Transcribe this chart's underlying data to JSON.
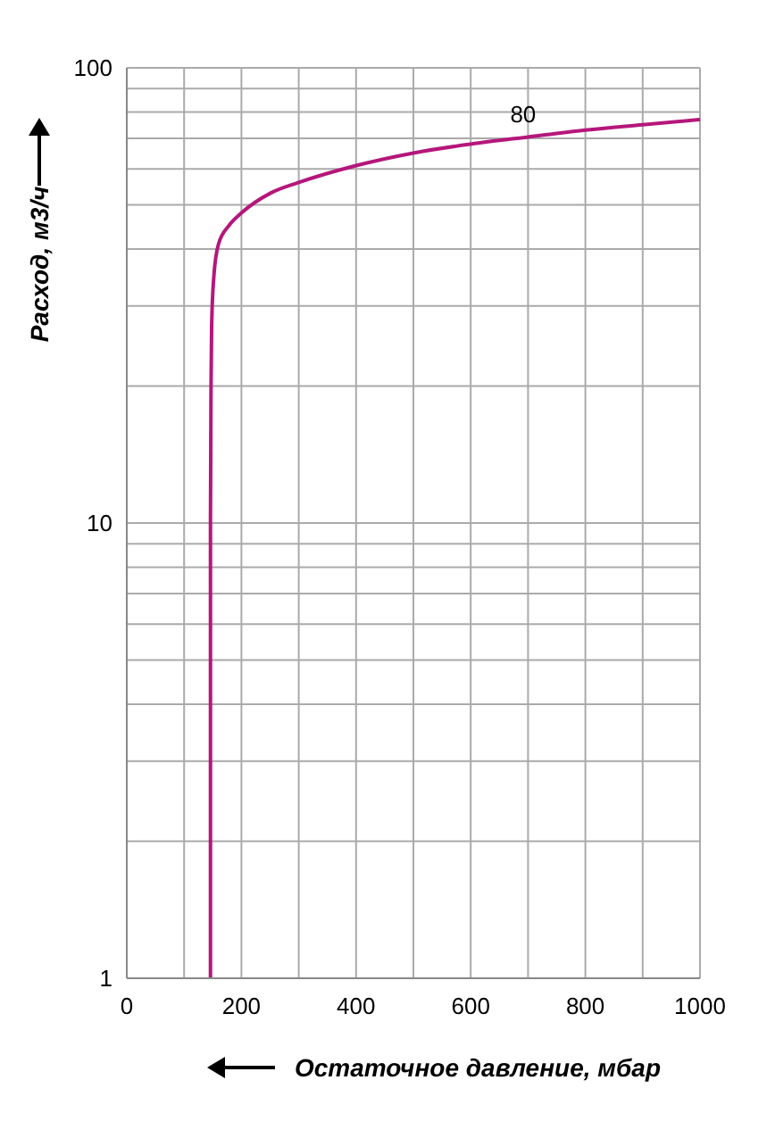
{
  "chart_data": {
    "type": "line",
    "xlabel": "Остаточное давление, мбар",
    "ylabel": "Расход, м3/ч",
    "x": [
      146,
      146,
      147,
      148,
      152,
      160,
      178,
      200,
      250,
      300,
      400,
      500,
      600,
      700,
      800,
      900,
      1000
    ],
    "series": [
      {
        "name": "80",
        "color": "#b5177b",
        "values": [
          1,
          10,
          20,
          27,
          35,
          41,
          45,
          48,
          53,
          56,
          61,
          65,
          68,
          70.5,
          73,
          75,
          77
        ]
      }
    ],
    "xlim": [
      0,
      1000
    ],
    "ylim": [
      1,
      100
    ],
    "log": "y",
    "xticks": [
      0,
      {
        "value": 100,
        "label": null
      },
      200,
      {
        "value": 300,
        "label": null
      },
      400,
      {
        "value": 500,
        "label": null
      },
      600,
      {
        "value": 700,
        "label": null
      },
      800,
      {
        "value": 900,
        "label": null
      },
      1000
    ],
    "yticks": [
      1,
      {
        "value": 2,
        "label": null
      },
      {
        "value": 3,
        "label": null
      },
      {
        "value": 4,
        "label": null
      },
      {
        "value": 5,
        "label": null
      },
      {
        "value": 6,
        "label": null
      },
      {
        "value": 7,
        "label": null
      },
      {
        "value": 8,
        "label": null
      },
      {
        "value": 9,
        "label": null
      },
      10,
      {
        "value": 20,
        "label": null
      },
      {
        "value": 30,
        "label": null
      },
      {
        "value": 40,
        "label": null
      },
      {
        "value": 50,
        "label": null
      },
      {
        "value": 60,
        "label": null
      },
      {
        "value": 70,
        "label": null
      },
      {
        "value": 80,
        "label": null
      },
      {
        "value": 90,
        "label": null
      },
      100
    ],
    "grid": true,
    "marker": "none",
    "line_style": "solid"
  }
}
